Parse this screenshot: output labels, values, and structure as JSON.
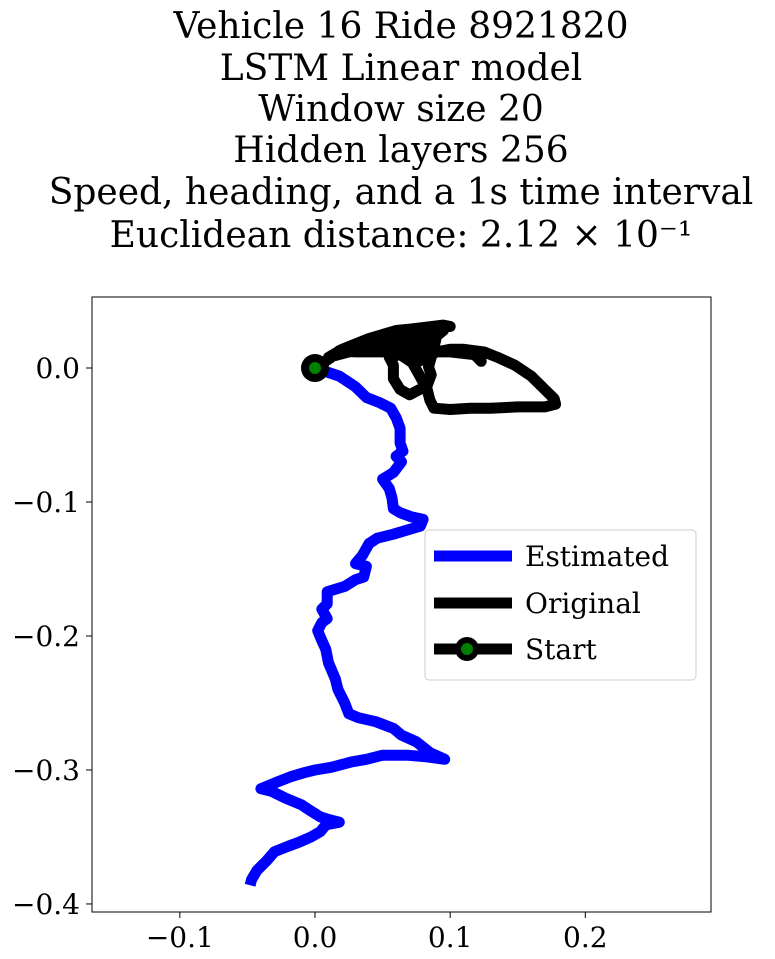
{
  "chart_data": {
    "type": "line",
    "title_lines": [
      "Vehicle 16 Ride 8921820",
      "LSTM Linear model",
      "Window size 20",
      "Hidden layers 256",
      "Speed, heading, and a 1s time interval",
      "Euclidean distance: 2.12 × 10⁻¹"
    ],
    "xlabel": "",
    "ylabel": "",
    "xlim": [
      -0.165,
      0.293
    ],
    "ylim": [
      -0.406,
      0.053
    ],
    "x_ticks": [
      -0.1,
      0.0,
      0.1,
      0.2
    ],
    "x_tick_labels": [
      "−0.1",
      "0.0",
      "0.1",
      "0.2"
    ],
    "y_ticks": [
      0.0,
      -0.1,
      -0.2,
      -0.3,
      -0.4
    ],
    "y_tick_labels": [
      "0.0",
      "−0.1",
      "−0.2",
      "−0.3",
      "−0.4"
    ],
    "grid": false,
    "legend_position": "center-right",
    "series": [
      {
        "name": "Estimated",
        "color": "#0000ff",
        "points": [
          [
            0.0,
            0.0
          ],
          [
            0.018,
            -0.006
          ],
          [
            0.03,
            -0.014
          ],
          [
            0.038,
            -0.022
          ],
          [
            0.048,
            -0.026
          ],
          [
            0.056,
            -0.03
          ],
          [
            0.06,
            -0.037
          ],
          [
            0.063,
            -0.045
          ],
          [
            0.063,
            -0.056
          ],
          [
            0.065,
            -0.062
          ],
          [
            0.06,
            -0.066
          ],
          [
            0.064,
            -0.07
          ],
          [
            0.058,
            -0.078
          ],
          [
            0.05,
            -0.083
          ],
          [
            0.055,
            -0.09
          ],
          [
            0.057,
            -0.097
          ],
          [
            0.058,
            -0.105
          ],
          [
            0.063,
            -0.108
          ],
          [
            0.071,
            -0.111
          ],
          [
            0.08,
            -0.113
          ],
          [
            0.078,
            -0.118
          ],
          [
            0.068,
            -0.121
          ],
          [
            0.058,
            -0.124
          ],
          [
            0.046,
            -0.127
          ],
          [
            0.04,
            -0.131
          ],
          [
            0.035,
            -0.14
          ],
          [
            0.03,
            -0.146
          ],
          [
            0.038,
            -0.148
          ],
          [
            0.036,
            -0.156
          ],
          [
            0.03,
            -0.158
          ],
          [
            0.022,
            -0.163
          ],
          [
            0.009,
            -0.167
          ],
          [
            0.009,
            -0.176
          ],
          [
            0.005,
            -0.18
          ],
          [
            0.009,
            -0.187
          ],
          [
            0.005,
            -0.19
          ],
          [
            0.002,
            -0.196
          ],
          [
            0.004,
            -0.201
          ],
          [
            0.008,
            -0.21
          ],
          [
            0.01,
            -0.22
          ],
          [
            0.015,
            -0.232
          ],
          [
            0.017,
            -0.24
          ],
          [
            0.022,
            -0.25
          ],
          [
            0.025,
            -0.258
          ],
          [
            0.032,
            -0.261
          ],
          [
            0.045,
            -0.264
          ],
          [
            0.058,
            -0.269
          ],
          [
            0.064,
            -0.274
          ],
          [
            0.075,
            -0.279
          ],
          [
            0.085,
            -0.287
          ],
          [
            0.096,
            -0.292
          ],
          [
            0.081,
            -0.29
          ],
          [
            0.068,
            -0.289
          ],
          [
            0.05,
            -0.289
          ],
          [
            0.038,
            -0.292
          ],
          [
            0.027,
            -0.294
          ],
          [
            0.012,
            -0.298
          ],
          [
            0.0,
            -0.3
          ],
          [
            -0.008,
            -0.302
          ],
          [
            -0.018,
            -0.305
          ],
          [
            -0.028,
            -0.309
          ],
          [
            -0.04,
            -0.314
          ],
          [
            -0.032,
            -0.316
          ],
          [
            -0.022,
            -0.321
          ],
          [
            -0.01,
            -0.326
          ],
          [
            -0.004,
            -0.33
          ],
          [
            0.004,
            -0.335
          ],
          [
            0.01,
            -0.337
          ],
          [
            0.018,
            -0.339
          ],
          [
            0.008,
            -0.341
          ],
          [
            0.004,
            -0.346
          ],
          [
            -0.003,
            -0.35
          ],
          [
            -0.012,
            -0.354
          ],
          [
            -0.02,
            -0.357
          ],
          [
            -0.03,
            -0.361
          ],
          [
            -0.036,
            -0.368
          ],
          [
            -0.043,
            -0.375
          ],
          [
            -0.047,
            -0.382
          ],
          [
            -0.048,
            -0.386
          ]
        ]
      },
      {
        "name": "Original",
        "color": "#000000",
        "points": [
          [
            0.0,
            0.0
          ],
          [
            0.015,
            0.01
          ],
          [
            0.03,
            0.017
          ],
          [
            0.048,
            0.024
          ],
          [
            0.07,
            0.029
          ],
          [
            0.095,
            0.032
          ],
          [
            0.1,
            0.031
          ],
          [
            0.08,
            0.03
          ],
          [
            0.06,
            0.028
          ],
          [
            0.04,
            0.022
          ],
          [
            0.02,
            0.014
          ],
          [
            0.01,
            0.008
          ],
          [
            0.025,
            0.012
          ],
          [
            0.04,
            0.015
          ],
          [
            0.06,
            0.018
          ],
          [
            0.075,
            0.019
          ],
          [
            0.085,
            0.018
          ],
          [
            0.08,
            0.01
          ],
          [
            0.075,
            0.004
          ],
          [
            0.09,
            0.012
          ],
          [
            0.1,
            0.014
          ],
          [
            0.11,
            0.014
          ],
          [
            0.125,
            0.012
          ],
          [
            0.135,
            0.008
          ],
          [
            0.148,
            0.002
          ],
          [
            0.16,
            -0.006
          ],
          [
            0.17,
            -0.016
          ],
          [
            0.177,
            -0.023
          ],
          [
            0.178,
            -0.027
          ],
          [
            0.17,
            -0.029
          ],
          [
            0.15,
            -0.029
          ],
          [
            0.13,
            -0.03
          ],
          [
            0.115,
            -0.03
          ],
          [
            0.1,
            -0.031
          ],
          [
            0.088,
            -0.03
          ],
          [
            0.085,
            -0.024
          ],
          [
            0.083,
            -0.016
          ],
          [
            0.077,
            -0.005
          ],
          [
            0.072,
            0.004
          ],
          [
            0.063,
            0.01
          ],
          [
            0.055,
            0.008
          ],
          [
            0.058,
            0.002
          ],
          [
            0.058,
            -0.008
          ],
          [
            0.063,
            -0.016
          ],
          [
            0.07,
            -0.02
          ],
          [
            0.083,
            -0.013
          ],
          [
            0.086,
            -0.005
          ],
          [
            0.084,
            0.001
          ],
          [
            0.086,
            0.008
          ],
          [
            0.088,
            0.015
          ],
          [
            0.09,
            0.024
          ],
          [
            0.095,
            0.028
          ],
          [
            0.085,
            0.026
          ],
          [
            0.07,
            0.022
          ],
          [
            0.055,
            0.019
          ],
          [
            0.04,
            0.018
          ],
          [
            0.028,
            0.016
          ],
          [
            0.018,
            0.013
          ],
          [
            0.03,
            0.012
          ],
          [
            0.052,
            0.012
          ],
          [
            0.078,
            0.012
          ],
          [
            0.1,
            0.012
          ],
          [
            0.118,
            0.01
          ],
          [
            0.123,
            0.005
          ]
        ]
      }
    ],
    "start_marker": {
      "name": "Start",
      "x": 0.0,
      "y": 0.0,
      "edge_color": "#000000",
      "face_color": "#008000"
    }
  }
}
